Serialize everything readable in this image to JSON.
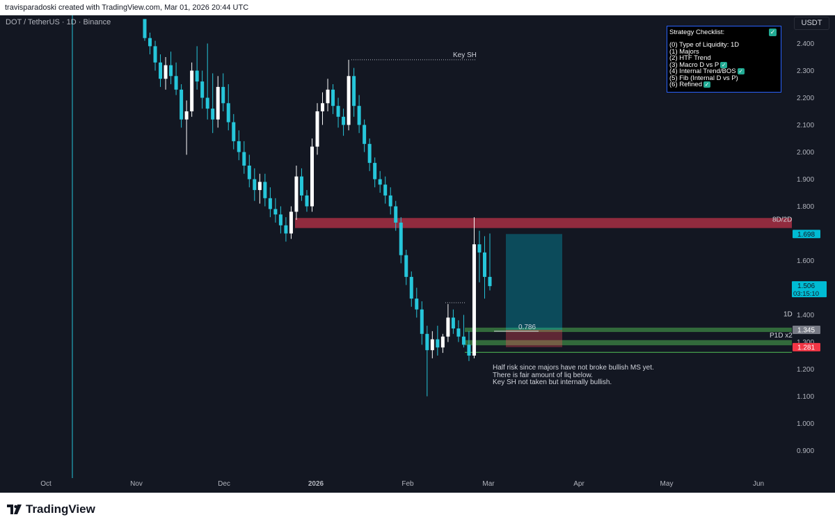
{
  "header": {
    "attribution": "travisparadoski created with TradingView.com, Mar 01, 2026 20:44 UTC"
  },
  "symbol_line": "DOT / TetherUS · 1D · Binance",
  "currency_button": "USDT",
  "footer": {
    "brand": "TradingView"
  },
  "checklist": {
    "title": "Strategy Checklist:",
    "items": [
      {
        "text": "(0) Type of Liquidity: 1D",
        "checked": false
      },
      {
        "text": "(1) Majors",
        "checked": false
      },
      {
        "text": "(2) HTF Trend",
        "checked": false
      },
      {
        "text": "(3) Macro D vs P",
        "checked": true
      },
      {
        "text": "(4) Internal Trend/BOS",
        "checked": true
      },
      {
        "text": "(5) Fib (Internal D vs P)",
        "checked": false
      },
      {
        "text": "(6) Refined",
        "checked": true
      }
    ]
  },
  "annotations": {
    "key_sh": "Key SH",
    "zone_top": "8D/2D",
    "zone_1d": "1D",
    "zone_p1d": "P1D x2",
    "fib": "0.786",
    "note": [
      "Half risk since majors have not broke bullish MS yet.",
      "There is fair amount of liq below.",
      "Key SH not taken but internally bullish."
    ]
  },
  "price_tags": {
    "target": "1.698",
    "current": "1.506",
    "countdown": "03:15:10",
    "entry": "1.345",
    "stop": "1.281"
  },
  "colors": {
    "background": "#131722",
    "up": "#ffffff",
    "down": "#26c6da",
    "supply_zone": "#c2334a",
    "demand_zone": "#4caf50",
    "target_box": "#00bcd4",
    "stop_box": "#ff4c5b"
  },
  "chart_data": {
    "type": "candlestick",
    "title": "DOT / TetherUS · 1D · Binance",
    "y_axis": {
      "side": "right",
      "ticks": [
        "2.400",
        "2.300",
        "2.200",
        "2.100",
        "2.000",
        "1.900",
        "1.800",
        "1.700",
        "1.600",
        "1.500",
        "1.400",
        "1.300",
        "1.200",
        "1.100",
        "1.000",
        "0.900"
      ]
    },
    "x_axis": {
      "ticks": [
        "Oct",
        "Nov",
        "Dec",
        "2026",
        "Feb",
        "Mar",
        "Apr",
        "May",
        "Jun"
      ]
    },
    "ylim": [
      0.85,
      2.47
    ],
    "zones": [
      {
        "label": "8D/2D",
        "low": 1.72,
        "high": 1.757
      },
      {
        "label": "1D",
        "low": 1.337,
        "high": 1.353
      },
      {
        "label": "P1D x2",
        "low": 1.288,
        "high": 1.307
      }
    ],
    "position": {
      "entry": 1.345,
      "target": 1.698,
      "stop": 1.281
    },
    "candles": [
      [
        2.49,
        2.49,
        2.41,
        2.42
      ],
      [
        2.42,
        2.44,
        2.36,
        2.39
      ],
      [
        2.39,
        2.41,
        2.3,
        2.33
      ],
      [
        2.33,
        2.36,
        2.24,
        2.27
      ],
      [
        2.27,
        2.35,
        2.23,
        2.32
      ],
      [
        2.32,
        2.37,
        2.25,
        2.28
      ],
      [
        2.28,
        2.33,
        2.21,
        2.23
      ],
      [
        2.23,
        2.25,
        2.09,
        2.12
      ],
      [
        2.12,
        2.19,
        1.99,
        2.15
      ],
      [
        2.15,
        2.33,
        2.13,
        2.3
      ],
      [
        2.3,
        2.39,
        2.23,
        2.26
      ],
      [
        2.26,
        2.3,
        2.16,
        2.2
      ],
      [
        2.2,
        2.4,
        2.12,
        2.16
      ],
      [
        2.16,
        2.29,
        2.07,
        2.12
      ],
      [
        2.12,
        2.28,
        2.09,
        2.24
      ],
      [
        2.24,
        2.29,
        2.15,
        2.18
      ],
      [
        2.18,
        2.25,
        2.08,
        2.11
      ],
      [
        2.11,
        2.14,
        2.01,
        2.04
      ],
      [
        2.04,
        2.08,
        1.97,
        2.0
      ],
      [
        2.0,
        2.04,
        1.92,
        1.95
      ],
      [
        1.95,
        1.99,
        1.87,
        1.9
      ],
      [
        1.9,
        1.94,
        1.82,
        1.86
      ],
      [
        1.86,
        1.92,
        1.81,
        1.89
      ],
      [
        1.89,
        1.92,
        1.8,
        1.83
      ],
      [
        1.83,
        1.87,
        1.76,
        1.79
      ],
      [
        1.79,
        1.83,
        1.74,
        1.77
      ],
      [
        1.77,
        1.8,
        1.7,
        1.73
      ],
      [
        1.73,
        1.76,
        1.67,
        1.7
      ],
      [
        1.7,
        1.8,
        1.68,
        1.78
      ],
      [
        1.78,
        1.95,
        1.75,
        1.91
      ],
      [
        1.91,
        1.94,
        1.82,
        1.84
      ],
      [
        1.84,
        1.86,
        1.78,
        1.8
      ],
      [
        1.8,
        2.05,
        1.78,
        2.02
      ],
      [
        2.02,
        2.18,
        1.99,
        2.15
      ],
      [
        2.15,
        2.22,
        2.1,
        2.18
      ],
      [
        2.18,
        2.27,
        2.15,
        2.23
      ],
      [
        2.23,
        2.25,
        2.14,
        2.17
      ],
      [
        2.17,
        2.2,
        2.09,
        2.13
      ],
      [
        2.13,
        2.16,
        2.06,
        2.1
      ],
      [
        2.1,
        2.34,
        2.08,
        2.28
      ],
      [
        2.28,
        2.31,
        2.13,
        2.17
      ],
      [
        2.17,
        2.21,
        2.07,
        2.1
      ],
      [
        2.1,
        2.12,
        2.0,
        2.03
      ],
      [
        2.03,
        2.05,
        1.93,
        1.96
      ],
      [
        1.96,
        1.98,
        1.87,
        1.9
      ],
      [
        1.9,
        1.93,
        1.85,
        1.88
      ],
      [
        1.88,
        1.91,
        1.81,
        1.84
      ],
      [
        1.84,
        1.87,
        1.77,
        1.8
      ],
      [
        1.8,
        1.82,
        1.71,
        1.74
      ],
      [
        1.74,
        1.76,
        1.59,
        1.62
      ],
      [
        1.62,
        1.64,
        1.51,
        1.54
      ],
      [
        1.54,
        1.56,
        1.43,
        1.46
      ],
      [
        1.46,
        1.5,
        1.39,
        1.42
      ],
      [
        1.42,
        1.45,
        1.29,
        1.33
      ],
      [
        1.33,
        1.36,
        1.1,
        1.27
      ],
      [
        1.27,
        1.34,
        1.24,
        1.31
      ],
      [
        1.31,
        1.36,
        1.25,
        1.28
      ],
      [
        1.28,
        1.33,
        1.26,
        1.32
      ],
      [
        1.32,
        1.44,
        1.3,
        1.39
      ],
      [
        1.39,
        1.42,
        1.33,
        1.35
      ],
      [
        1.35,
        1.38,
        1.3,
        1.32
      ],
      [
        1.32,
        1.4,
        1.28,
        1.29
      ],
      [
        1.29,
        1.34,
        1.23,
        1.25
      ],
      [
        1.25,
        1.76,
        1.24,
        1.66
      ],
      [
        1.66,
        1.71,
        1.52,
        1.63
      ],
      [
        1.63,
        1.69,
        1.46,
        1.54
      ],
      [
        1.54,
        1.7,
        1.49,
        1.506
      ]
    ]
  }
}
